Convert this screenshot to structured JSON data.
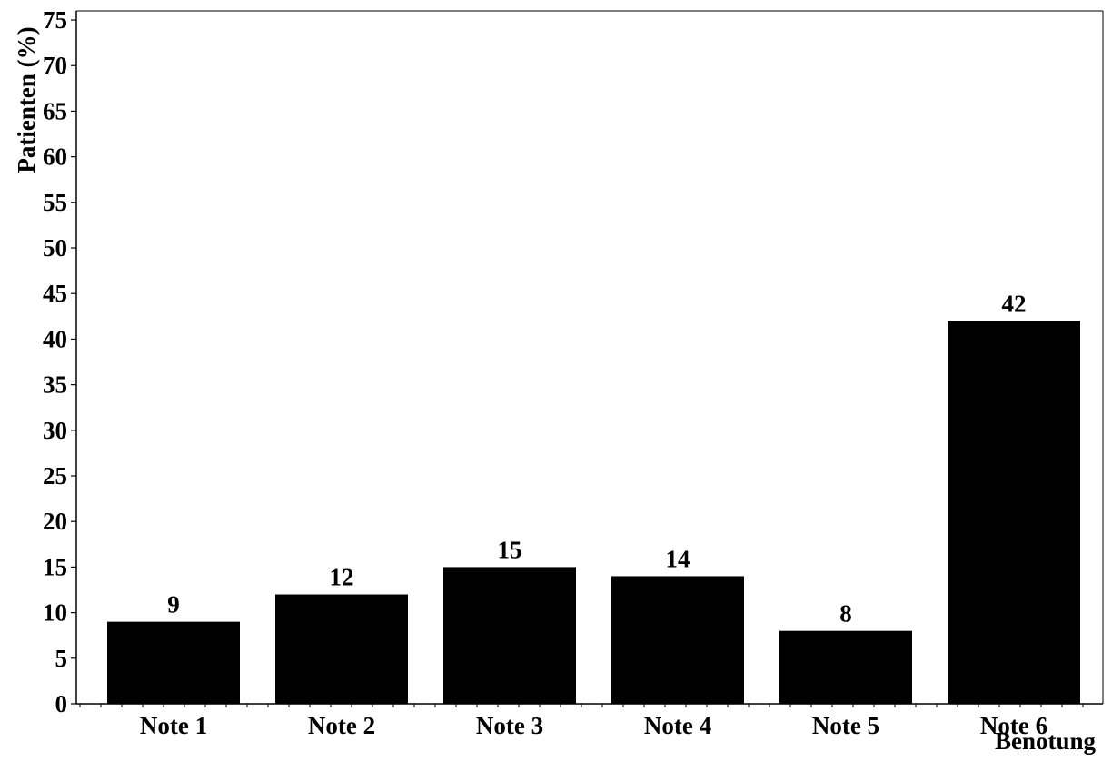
{
  "chart_data": {
    "type": "bar",
    "categories": [
      "Note 1",
      "Note 2",
      "Note 3",
      "Note 4",
      "Note 5",
      "Note 6"
    ],
    "values": [
      9,
      12,
      15,
      14,
      8,
      42
    ],
    "data_labels": [
      "9",
      "12",
      "15",
      "14",
      "8",
      "42"
    ],
    "title": "",
    "xlabel": "Benotung",
    "ylabel": "Patienten (%)",
    "ylim": [
      0,
      76
    ],
    "yticks": [
      0,
      5,
      10,
      15,
      20,
      25,
      30,
      35,
      40,
      45,
      50,
      55,
      60,
      65,
      70,
      75
    ],
    "ytick_labels": [
      "0",
      "5",
      "10",
      "15",
      "20",
      "25",
      "30",
      "35",
      "40",
      "45",
      "50",
      "55",
      "60",
      "65",
      "70",
      "75"
    ],
    "grid": false,
    "legend": "none",
    "bar_color": "#000000"
  }
}
